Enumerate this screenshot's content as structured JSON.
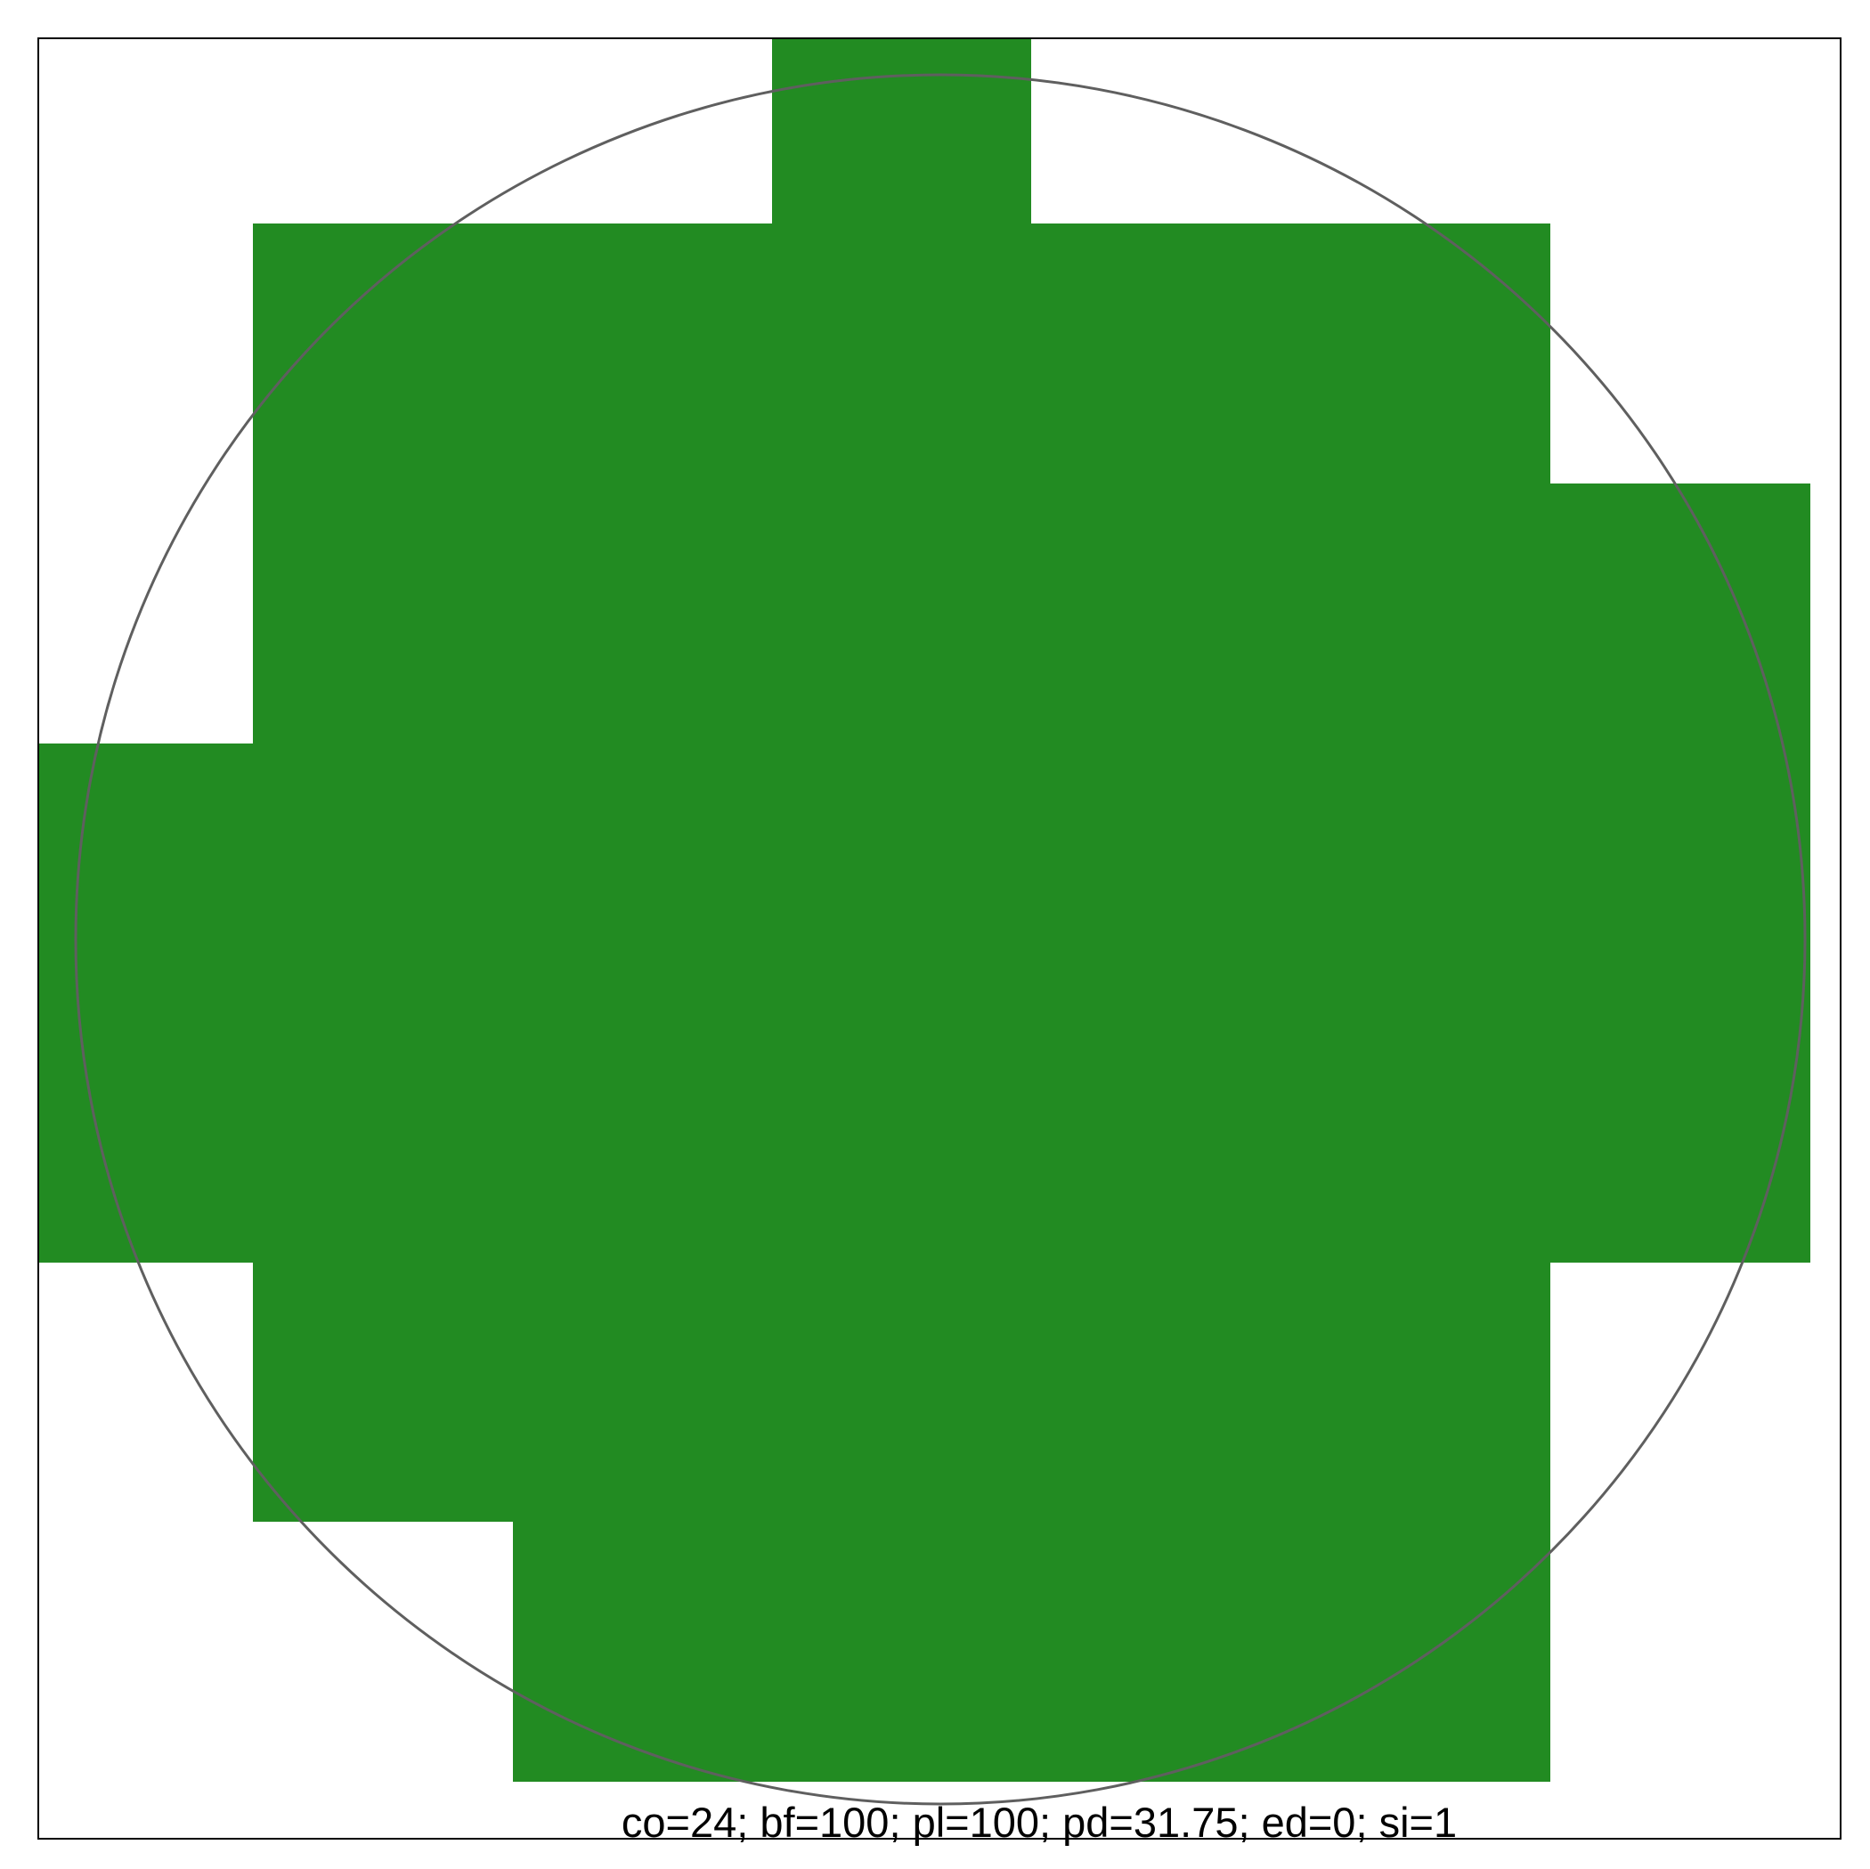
{
  "caption": "co=24; bf=100; pl=100; pd=31.75; ed=0; si=1",
  "colors": {
    "background": "#ffffff",
    "frame": "#000000",
    "fill": "#228b22",
    "circle": "#5f5f5f"
  }
}
